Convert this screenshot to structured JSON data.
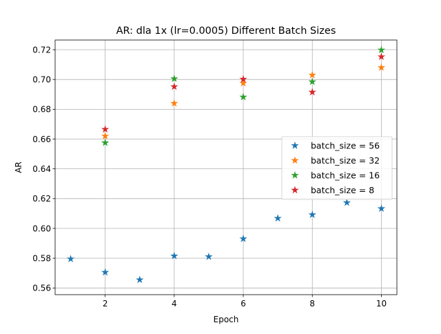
{
  "chart_data": {
    "type": "scatter",
    "title": "AR: dla 1x (lr=0.0005) Different Batch Sizes",
    "xlabel": "Epoch",
    "ylabel": "AR",
    "xlim": [
      0.55,
      10.45
    ],
    "ylim": [
      0.5555,
      0.7265
    ],
    "xticks": [
      2,
      4,
      6,
      8,
      10
    ],
    "yticks": [
      0.56,
      0.58,
      0.6,
      0.62,
      0.64,
      0.66,
      0.68,
      0.7,
      0.72
    ],
    "xtick_labels": [
      "2",
      "4",
      "6",
      "8",
      "10"
    ],
    "ytick_labels": [
      "0.56",
      "0.58",
      "0.60",
      "0.62",
      "0.64",
      "0.66",
      "0.68",
      "0.70",
      "0.72"
    ],
    "grid": true,
    "marker": "star",
    "legend_position": "center-right",
    "series": [
      {
        "name": "batch_size = 56",
        "color": "#1f77b4",
        "x": [
          1,
          2,
          3,
          4,
          5,
          6,
          7,
          8,
          9,
          10
        ],
        "y": [
          0.5795,
          0.5705,
          0.5655,
          0.5815,
          0.581,
          0.593,
          0.6068,
          0.6092,
          0.6173,
          0.6133
        ]
      },
      {
        "name": "batch_size = 32",
        "color": "#ff7f0e",
        "x": [
          2,
          4,
          6,
          8,
          10
        ],
        "y": [
          0.662,
          0.684,
          0.6975,
          0.703,
          0.708
        ]
      },
      {
        "name": "batch_size = 16",
        "color": "#2ca02c",
        "x": [
          2,
          4,
          6,
          8,
          10
        ],
        "y": [
          0.6575,
          0.7005,
          0.6882,
          0.6985,
          0.7198
        ]
      },
      {
        "name": "batch_size = 8",
        "color": "#d62728",
        "x": [
          2,
          4,
          6,
          8,
          10
        ],
        "y": [
          0.6665,
          0.6952,
          0.7002,
          0.6915,
          0.7153
        ]
      }
    ]
  }
}
